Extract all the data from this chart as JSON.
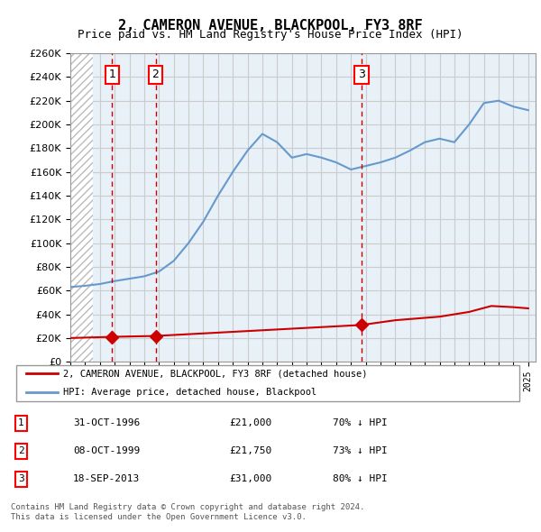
{
  "title": "2, CAMERON AVENUE, BLACKPOOL, FY3 8RF",
  "subtitle": "Price paid vs. HM Land Registry's House Price Index (HPI)",
  "legend_line1": "2, CAMERON AVENUE, BLACKPOOL, FY3 8RF (detached house)",
  "legend_line2": "HPI: Average price, detached house, Blackpool",
  "footer1": "Contains HM Land Registry data © Crown copyright and database right 2024.",
  "footer2": "This data is licensed under the Open Government Licence v3.0.",
  "transactions": [
    {
      "label": "1",
      "date": "31-OCT-1996",
      "price": 21000,
      "pct": "70% ↓ HPI",
      "year": 1996.83
    },
    {
      "label": "2",
      "date": "08-OCT-1999",
      "price": 21750,
      "pct": "73% ↓ HPI",
      "year": 1999.77
    },
    {
      "label": "3",
      "date": "18-SEP-2013",
      "price": 31000,
      "pct": "80% ↓ HPI",
      "year": 2013.71
    }
  ],
  "hpi_color": "#6699cc",
  "price_color": "#cc0000",
  "marker_color": "#cc0000",
  "vline_color": "#cc0000",
  "bg_hatch_color": "#dddddd",
  "grid_color": "#cccccc",
  "ylim": [
    0,
    260000
  ],
  "yticks": [
    0,
    20000,
    40000,
    60000,
    80000,
    100000,
    120000,
    140000,
    160000,
    180000,
    200000,
    220000,
    240000,
    260000
  ],
  "xlim_start": 1994.0,
  "xlim_end": 2025.5,
  "hpi_years": [
    1994,
    1995,
    1996,
    1997,
    1998,
    1999,
    2000,
    2001,
    2002,
    2003,
    2004,
    2005,
    2006,
    2007,
    2008,
    2009,
    2010,
    2011,
    2012,
    2013,
    2014,
    2015,
    2016,
    2017,
    2018,
    2019,
    2020,
    2021,
    2022,
    2023,
    2024,
    2025
  ],
  "hpi_values": [
    63000,
    64000,
    65500,
    68000,
    70000,
    72000,
    76000,
    85000,
    100000,
    118000,
    140000,
    160000,
    178000,
    192000,
    185000,
    172000,
    175000,
    172000,
    168000,
    162000,
    165000,
    168000,
    172000,
    178000,
    185000,
    188000,
    185000,
    200000,
    218000,
    220000,
    215000,
    212000
  ],
  "price_years": [
    1994.0,
    1996.83,
    1999.77,
    2013.71,
    2016.0,
    2019.0,
    2021.0,
    2022.5,
    2024.0,
    2025.0
  ],
  "price_values": [
    20000,
    21000,
    21750,
    31000,
    35000,
    38000,
    42000,
    47000,
    46000,
    45000
  ]
}
